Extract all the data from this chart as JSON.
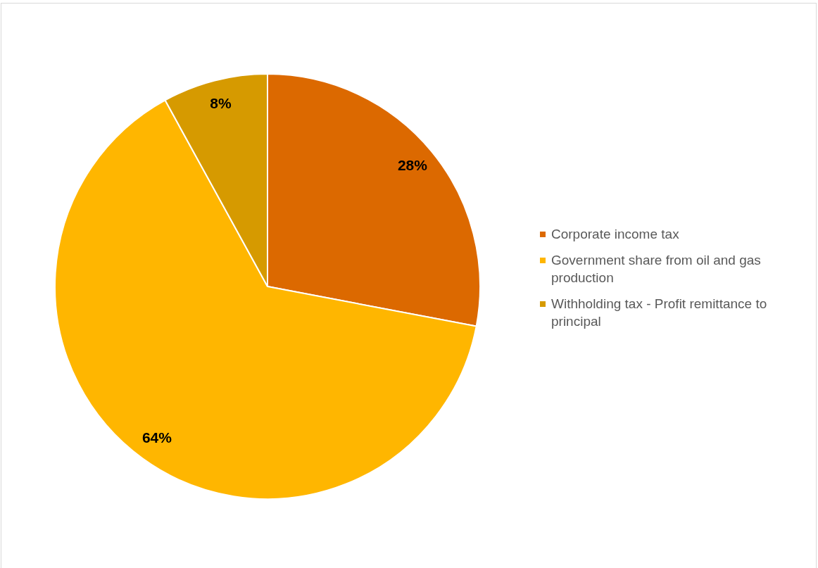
{
  "chart_data": {
    "type": "pie",
    "categories": [
      "Corporate income tax",
      "Government share from oil and gas production",
      "Withholding tax - Profit remittance to principal"
    ],
    "values": [
      28,
      64,
      8
    ],
    "colors": [
      "#dc6900",
      "#ffb600",
      "#d69a00"
    ],
    "value_labels": [
      "28%",
      "64%",
      "8%"
    ],
    "legend": "right"
  }
}
